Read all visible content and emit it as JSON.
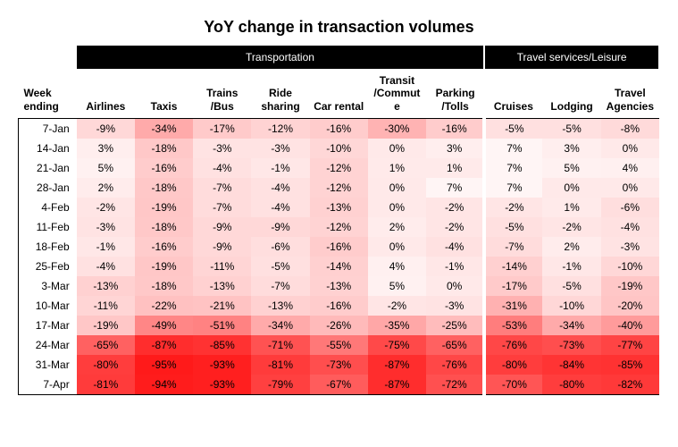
{
  "title": "YoY change in transaction volumes",
  "title_fontsize": 18,
  "groups": [
    {
      "label": "Transportation",
      "span": 7
    },
    {
      "label": "Travel services/Leisure",
      "span": 3
    }
  ],
  "row_header": "Week ending",
  "columns": [
    "Airlines",
    "Taxis",
    "Trains /Bus",
    "Ride sharing",
    "Car rental",
    "Transit /Commut e",
    "Parking /Tolls",
    "Cruises",
    "Lodging",
    "Travel Agencies"
  ],
  "rows": [
    {
      "week": "7-Jan",
      "vals": [
        -9,
        -34,
        -17,
        -12,
        -16,
        -30,
        -16,
        -5,
        -5,
        -8
      ]
    },
    {
      "week": "14-Jan",
      "vals": [
        3,
        -18,
        -3,
        -3,
        -10,
        0,
        3,
        7,
        3,
        0
      ]
    },
    {
      "week": "21-Jan",
      "vals": [
        5,
        -16,
        -4,
        -1,
        -12,
        1,
        1,
        7,
        5,
        4
      ]
    },
    {
      "week": "28-Jan",
      "vals": [
        2,
        -18,
        -7,
        -4,
        -12,
        0,
        7,
        7,
        0,
        0
      ]
    },
    {
      "week": "4-Feb",
      "vals": [
        -2,
        -19,
        -7,
        -4,
        -13,
        0,
        -2,
        -2,
        1,
        -6
      ]
    },
    {
      "week": "11-Feb",
      "vals": [
        -3,
        -18,
        -9,
        -9,
        -12,
        2,
        -2,
        -5,
        -2,
        -4
      ]
    },
    {
      "week": "18-Feb",
      "vals": [
        -1,
        -16,
        -9,
        -6,
        -16,
        0,
        -4,
        -7,
        2,
        -3
      ]
    },
    {
      "week": "25-Feb",
      "vals": [
        -4,
        -19,
        -11,
        -5,
        -14,
        4,
        -1,
        -14,
        -1,
        -10
      ]
    },
    {
      "week": "3-Mar",
      "vals": [
        -13,
        -18,
        -13,
        -7,
        -13,
        5,
        0,
        -17,
        -5,
        -19
      ]
    },
    {
      "week": "10-Mar",
      "vals": [
        -11,
        -22,
        -21,
        -13,
        -16,
        -2,
        -3,
        -31,
        -10,
        -20
      ]
    },
    {
      "week": "17-Mar",
      "vals": [
        -19,
        -49,
        -51,
        -34,
        -26,
        -35,
        -25,
        -53,
        -34,
        -40
      ]
    },
    {
      "week": "24-Mar",
      "vals": [
        -65,
        -87,
        -85,
        -71,
        -55,
        -75,
        -65,
        -76,
        -73,
        -77
      ]
    },
    {
      "week": "31-Mar",
      "vals": [
        -80,
        -95,
        -93,
        -81,
        -73,
        -87,
        -76,
        -80,
        -84,
        -85
      ]
    },
    {
      "week": "7-Apr",
      "vals": [
        -81,
        -94,
        -93,
        -79,
        -67,
        -87,
        -72,
        -70,
        -80,
        -82
      ]
    }
  ],
  "heat_scale": {
    "min": -95,
    "max": 7,
    "min_color": "#ff1a1a",
    "mid_color": "#ffb3b3",
    "max_color": "#fff5f5"
  },
  "background_color": "#ffffff",
  "font_family": "Segoe UI, Arial, sans-serif",
  "cell_fontsize": 12,
  "header_fontsize": 12
}
